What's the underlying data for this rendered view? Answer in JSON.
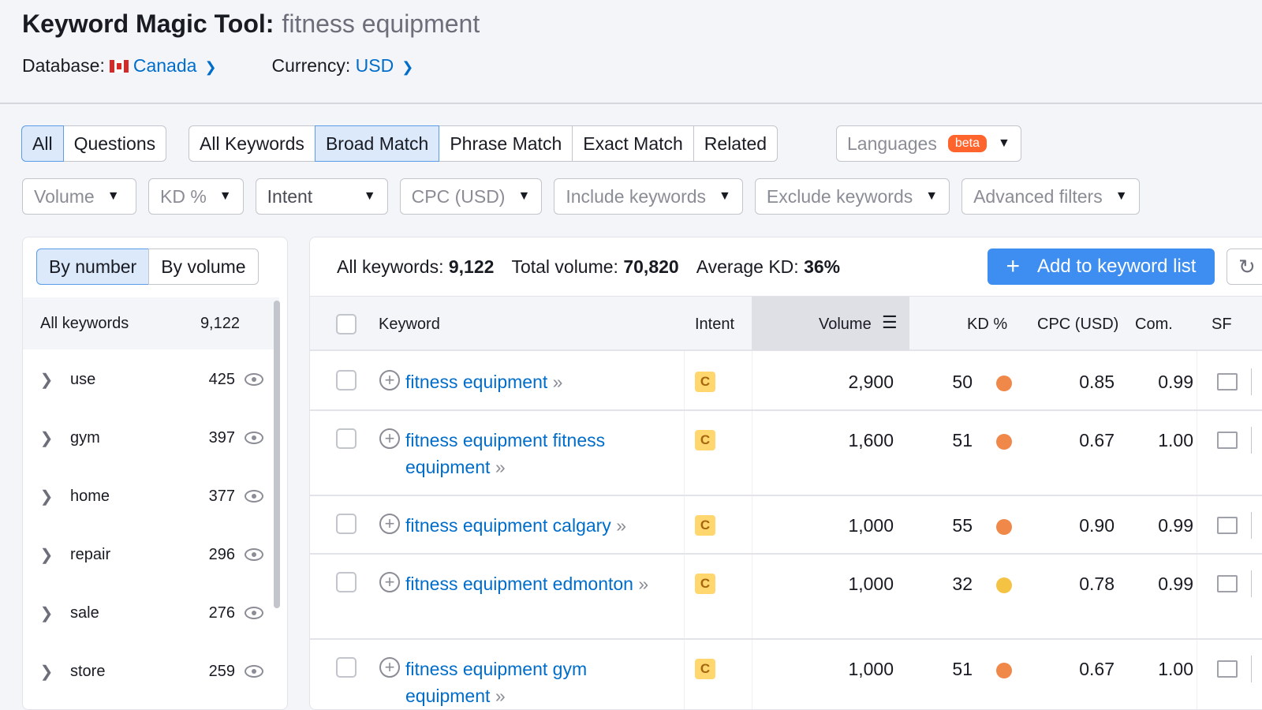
{
  "header": {
    "title": "Keyword Magic Tool:",
    "query": "fitness equipment",
    "database_label": "Database:",
    "database_value": "Canada",
    "currency_label": "Currency:",
    "currency_value": "USD"
  },
  "tabs_type": [
    "All",
    "Questions"
  ],
  "tabs_match": [
    "All Keywords",
    "Broad Match",
    "Phrase Match",
    "Exact Match",
    "Related"
  ],
  "languages": {
    "label": "Languages",
    "badge": "beta"
  },
  "filters": [
    "Volume",
    "KD %",
    "Intent",
    "CPC (USD)",
    "Include keywords",
    "Exclude keywords",
    "Advanced filters"
  ],
  "sidebar": {
    "toggle": [
      "By number",
      "By volume"
    ],
    "all_label": "All keywords",
    "all_count": "9,122",
    "groups": [
      {
        "label": "use",
        "count": "425"
      },
      {
        "label": "gym",
        "count": "397"
      },
      {
        "label": "home",
        "count": "377"
      },
      {
        "label": "repair",
        "count": "296"
      },
      {
        "label": "sale",
        "count": "276"
      },
      {
        "label": "store",
        "count": "259"
      }
    ]
  },
  "stats": {
    "all_label": "All keywords:",
    "all_value": "9,122",
    "vol_label": "Total volume:",
    "vol_value": "70,820",
    "kd_label": "Average KD:",
    "kd_value": "36%"
  },
  "add_button": "Add to keyword list",
  "columns": [
    "Keyword",
    "Intent",
    "Volume",
    "KD %",
    "CPC (USD)",
    "Com.",
    "SF"
  ],
  "rows": [
    {
      "keyword": "fitness equipment",
      "intent": "C",
      "volume": "2,900",
      "kd": "50",
      "kd_color": "#f0884a",
      "cpc": "0.85",
      "com": "0.99"
    },
    {
      "keyword": "fitness equipment fitness equipment",
      "intent": "C",
      "volume": "1,600",
      "kd": "51",
      "kd_color": "#f0884a",
      "cpc": "0.67",
      "com": "1.00"
    },
    {
      "keyword": "fitness equipment calgary",
      "intent": "C",
      "volume": "1,000",
      "kd": "55",
      "kd_color": "#f0884a",
      "cpc": "0.90",
      "com": "0.99"
    },
    {
      "keyword": "fitness equipment edmonton",
      "intent": "C",
      "volume": "1,000",
      "kd": "32",
      "kd_color": "#f5c344",
      "cpc": "0.78",
      "com": "0.99"
    },
    {
      "keyword": "fitness equipment gym equipment",
      "intent": "C",
      "volume": "1,000",
      "kd": "51",
      "kd_color": "#f0884a",
      "cpc": "0.67",
      "com": "1.00"
    }
  ]
}
